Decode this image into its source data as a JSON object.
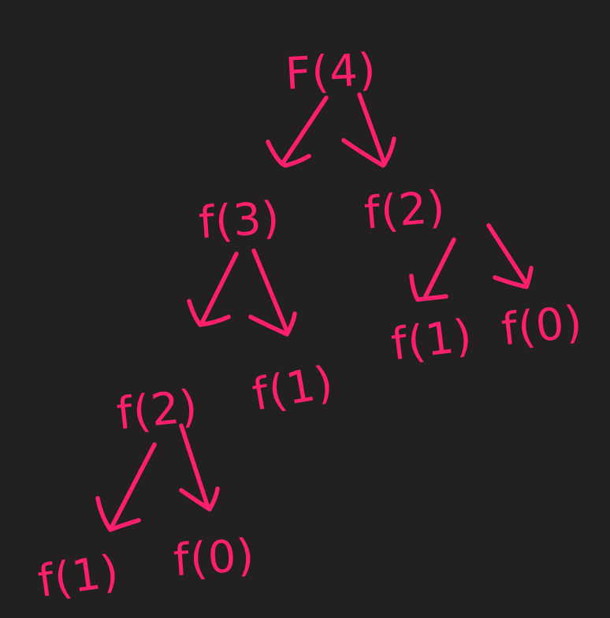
{
  "diagram": {
    "ink_color": "#ff1f6e",
    "background_color": "#222120",
    "nodes": [
      {
        "id": "root",
        "label": "F(4)"
      },
      {
        "id": "l1",
        "label": "f(3)"
      },
      {
        "id": "r1",
        "label": "f(2)"
      },
      {
        "id": "l1l",
        "label": "f(2)"
      },
      {
        "id": "l1r",
        "label": "f(1)"
      },
      {
        "id": "r1l",
        "label": "f(1)"
      },
      {
        "id": "r1r",
        "label": "f(0)"
      },
      {
        "id": "l1ll",
        "label": "f(1)"
      },
      {
        "id": "l1lr",
        "label": "f(0)"
      }
    ],
    "edges": [
      {
        "from": "root",
        "to": "l1"
      },
      {
        "from": "root",
        "to": "r1"
      },
      {
        "from": "l1",
        "to": "l1l"
      },
      {
        "from": "l1",
        "to": "l1r"
      },
      {
        "from": "r1",
        "to": "r1l"
      },
      {
        "from": "r1",
        "to": "r1r"
      },
      {
        "from": "l1l",
        "to": "l1ll"
      },
      {
        "from": "l1l",
        "to": "l1lr"
      }
    ]
  }
}
